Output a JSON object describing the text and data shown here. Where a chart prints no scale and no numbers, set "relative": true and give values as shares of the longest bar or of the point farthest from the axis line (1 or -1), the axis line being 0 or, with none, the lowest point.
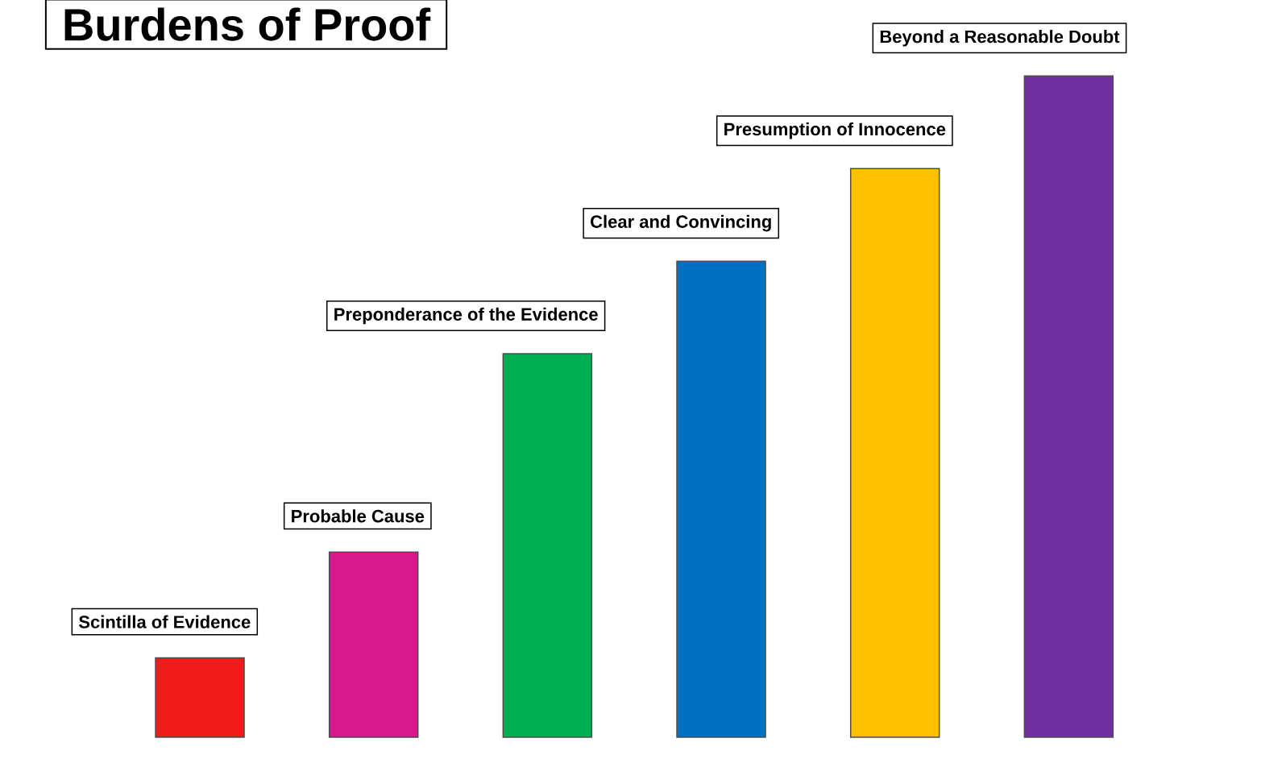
{
  "chart_data": {
    "type": "bar",
    "title": "Burdens of Proof",
    "relative": true,
    "categories": [
      "Scintilla of Evidence",
      "Probable Cause",
      "Preponderance of the Evidence",
      "Clear and Convincing",
      "Presumption of Innocence",
      "Beyond a Reasonable Doubt"
    ],
    "values": [
      0.12,
      0.28,
      0.58,
      0.72,
      0.86,
      1
    ],
    "colors": [
      "#f01c1c",
      "#d6198f",
      "#00b050",
      "#0070c0",
      "#ffc000",
      "#7030a0"
    ]
  }
}
